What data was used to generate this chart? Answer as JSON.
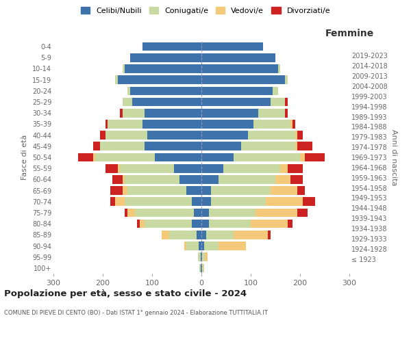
{
  "age_groups": [
    "100+",
    "95-99",
    "90-94",
    "85-89",
    "80-84",
    "75-79",
    "70-74",
    "65-69",
    "60-64",
    "55-59",
    "50-54",
    "45-49",
    "40-44",
    "35-39",
    "30-34",
    "25-29",
    "20-24",
    "15-19",
    "10-14",
    "5-9",
    "0-4"
  ],
  "birth_years": [
    "≤ 1923",
    "1924-1928",
    "1929-1933",
    "1934-1938",
    "1939-1943",
    "1944-1948",
    "1949-1953",
    "1954-1958",
    "1959-1963",
    "1964-1968",
    "1969-1973",
    "1974-1978",
    "1979-1983",
    "1984-1988",
    "1989-1993",
    "1994-1998",
    "1999-2003",
    "2004-2008",
    "2009-2013",
    "2014-2018",
    "2019-2023"
  ],
  "male": {
    "celibi": [
      2,
      2,
      5,
      10,
      20,
      15,
      20,
      30,
      45,
      55,
      95,
      115,
      110,
      120,
      115,
      140,
      145,
      170,
      155,
      145,
      120
    ],
    "coniugati": [
      2,
      5,
      25,
      55,
      95,
      120,
      135,
      120,
      110,
      110,
      120,
      90,
      85,
      70,
      45,
      20,
      5,
      5,
      5,
      0,
      0
    ],
    "vedovi": [
      0,
      0,
      5,
      15,
      10,
      15,
      20,
      10,
      5,
      5,
      5,
      0,
      0,
      0,
      0,
      0,
      0,
      0,
      0,
      0,
      0
    ],
    "divorziati": [
      0,
      0,
      0,
      0,
      5,
      5,
      10,
      25,
      20,
      25,
      30,
      15,
      10,
      5,
      5,
      0,
      0,
      0,
      0,
      0,
      0
    ]
  },
  "female": {
    "nubili": [
      2,
      2,
      5,
      10,
      15,
      15,
      20,
      20,
      35,
      45,
      65,
      80,
      95,
      105,
      115,
      140,
      145,
      170,
      155,
      150,
      125
    ],
    "coniugate": [
      2,
      5,
      30,
      55,
      85,
      95,
      110,
      120,
      115,
      115,
      135,
      110,
      95,
      75,
      55,
      30,
      10,
      5,
      5,
      0,
      0
    ],
    "vedove": [
      2,
      5,
      55,
      70,
      75,
      85,
      75,
      55,
      30,
      15,
      10,
      5,
      5,
      5,
      0,
      0,
      0,
      0,
      0,
      0,
      0
    ],
    "divorziate": [
      0,
      0,
      0,
      5,
      10,
      20,
      25,
      15,
      25,
      30,
      40,
      30,
      10,
      5,
      5,
      5,
      0,
      0,
      0,
      0,
      0
    ]
  },
  "colors": {
    "celibi": "#3d72aa",
    "coniugati": "#c8d9a2",
    "vedovi": "#f5c97a",
    "divorziati": "#cc2222"
  },
  "xlim": 300,
  "title": "Popolazione per età, sesso e stato civile - 2024",
  "subtitle": "COMUNE DI PIEVE DI CENTO (BO) - Dati ISTAT 1° gennaio 2024 - Elaborazione TUTTITALIA.IT",
  "ylabel_left": "Fasce di età",
  "ylabel_right": "Anni di nascita",
  "xlabel_right": "Femmine",
  "legend_labels": [
    "Celibi/Nubili",
    "Coniugati/e",
    "Vedovi/e",
    "Divorziati/e"
  ],
  "background_color": "#ffffff"
}
